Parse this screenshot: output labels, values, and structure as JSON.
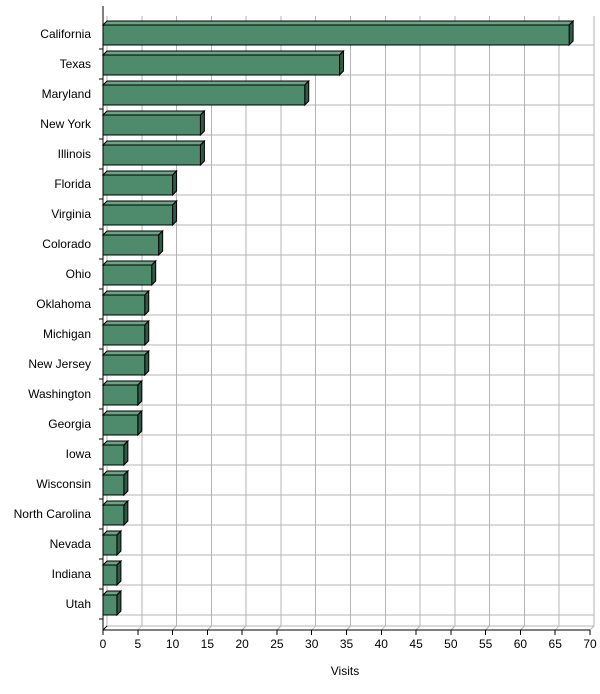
{
  "chart_data": {
    "type": "bar",
    "orientation": "horizontal",
    "style": "3d",
    "categories": [
      "California",
      "Texas",
      "Maryland",
      "New York",
      "Illinois",
      "Florida",
      "Virginia",
      "Colorado",
      "Ohio",
      "Oklahoma",
      "Michigan",
      "New Jersey",
      "Washington",
      "Georgia",
      "Iowa",
      "Wisconsin",
      "North Carolina",
      "Nevada",
      "Indiana",
      "Utah"
    ],
    "values": [
      67,
      34,
      29,
      14,
      14,
      10,
      10,
      8,
      7,
      6,
      6,
      6,
      5,
      5,
      3,
      3,
      3,
      2,
      2,
      2
    ],
    "title": "",
    "xlabel": "Visits",
    "ylabel": "",
    "xlim": [
      0,
      70
    ],
    "xticks": [
      "0",
      "5",
      "10",
      "15",
      "20",
      "25",
      "30",
      "35",
      "40",
      "45",
      "50",
      "55",
      "60",
      "65",
      "70"
    ],
    "grid": true,
    "legend": "none",
    "colors": {
      "bar_front": "#4e8a6c",
      "bar_top": "#6aa686",
      "bar_side": "#2f5a45",
      "grid": "#b4b4b4",
      "axis": "#000000"
    }
  }
}
